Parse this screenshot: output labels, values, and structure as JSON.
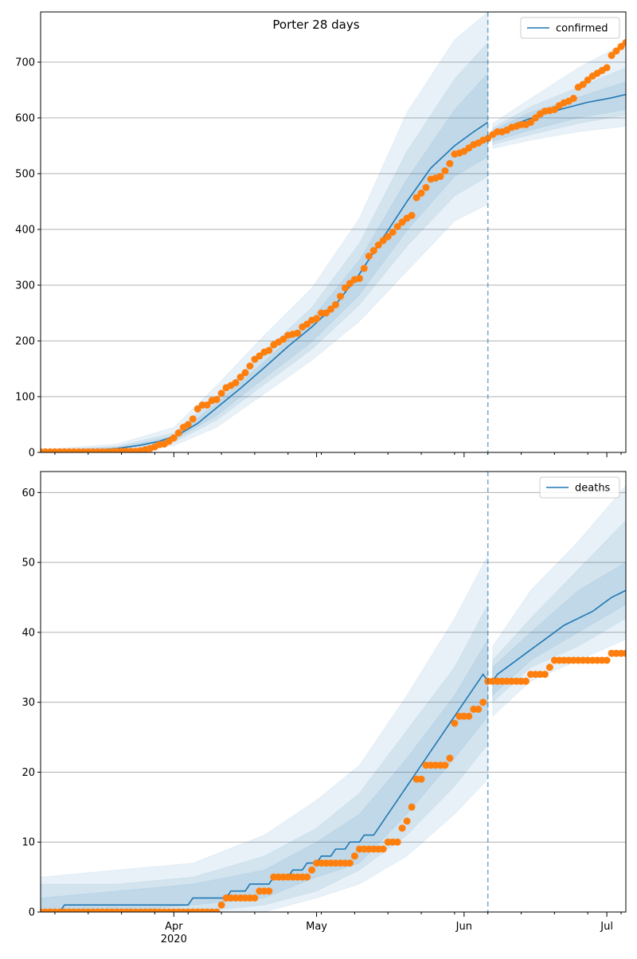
{
  "figure": {
    "title": "Porter 28 days"
  },
  "colors": {
    "model": "#1f77b4",
    "observed": "#ff7f0e",
    "grid": "#b0b0b0",
    "axes": "#000000"
  },
  "x_axis": {
    "start": "2020-03-04",
    "end": "2020-07-05",
    "tick_labels": [
      "Apr",
      "May",
      "Jun",
      "Jul"
    ],
    "tick_dates": [
      "2020-04-01",
      "2020-05-01",
      "2020-06-01",
      "2020-07-01"
    ],
    "year_label": "2020",
    "minor_ticks": "weekly"
  },
  "chart_data": [
    {
      "type": "line",
      "panel": "top",
      "title": "",
      "legend": {
        "label": "confirmed",
        "placement": "top-right"
      },
      "ylim": [
        0,
        790
      ],
      "yticks": [
        0,
        100,
        200,
        300,
        400,
        500,
        600,
        700
      ],
      "grid": "horizontal",
      "forecast_start": "2020-06-06",
      "model_line": {
        "name": "confirmed",
        "x": [
          "2020-03-04",
          "2020-03-10",
          "2020-03-16",
          "2020-03-20",
          "2020-03-25",
          "2020-03-29",
          "2020-04-02",
          "2020-04-06",
          "2020-04-10",
          "2020-04-15",
          "2020-04-20",
          "2020-04-25",
          "2020-04-30",
          "2020-05-05",
          "2020-05-10",
          "2020-05-15",
          "2020-05-20",
          "2020-05-25",
          "2020-05-30",
          "2020-06-03",
          "2020-06-06",
          "2020-06-07",
          "2020-06-12",
          "2020-06-17",
          "2020-06-22",
          "2020-06-27",
          "2020-07-02",
          "2020-07-05"
        ],
        "y": [
          1,
          2,
          4,
          7,
          13,
          20,
          32,
          52,
          80,
          115,
          152,
          190,
          225,
          265,
          320,
          385,
          450,
          510,
          550,
          575,
          592,
          570,
          590,
          605,
          617,
          628,
          636,
          642
        ]
      },
      "bands": {
        "x": [
          "2020-03-04",
          "2020-03-20",
          "2020-04-01",
          "2020-04-10",
          "2020-04-20",
          "2020-04-30",
          "2020-05-10",
          "2020-05-20",
          "2020-05-30",
          "2020-06-06",
          "2020-06-07",
          "2020-06-15",
          "2020-06-25",
          "2020-07-05"
        ],
        "outer_lo": [
          0,
          2,
          12,
          45,
          105,
          165,
          235,
          325,
          415,
          445,
          545,
          560,
          575,
          585
        ],
        "outer_hi": [
          5,
          15,
          45,
          120,
          210,
          295,
          420,
          610,
          740,
          790,
          590,
          635,
          690,
          735
        ],
        "mid_lo": [
          0,
          4,
          18,
          58,
          122,
          185,
          265,
          370,
          460,
          495,
          552,
          570,
          590,
          605
        ],
        "mid_hi": [
          3,
          11,
          35,
          100,
          180,
          260,
          375,
          540,
          670,
          735,
          582,
          620,
          655,
          690
        ],
        "inner_lo": [
          0,
          5,
          22,
          66,
          133,
          198,
          283,
          398,
          495,
          530,
          558,
          578,
          600,
          615
        ],
        "inner_hi": [
          2,
          9,
          29,
          88,
          163,
          240,
          345,
          490,
          615,
          680,
          578,
          610,
          637,
          665
        ]
      },
      "observed": {
        "name": "",
        "x": [
          "2020-03-04",
          "2020-03-05",
          "2020-03-06",
          "2020-03-07",
          "2020-03-08",
          "2020-03-09",
          "2020-03-10",
          "2020-03-11",
          "2020-03-12",
          "2020-03-13",
          "2020-03-14",
          "2020-03-15",
          "2020-03-16",
          "2020-03-17",
          "2020-03-18",
          "2020-03-19",
          "2020-03-20",
          "2020-03-21",
          "2020-03-22",
          "2020-03-23",
          "2020-03-24",
          "2020-03-25",
          "2020-03-26",
          "2020-03-27",
          "2020-03-28",
          "2020-03-29",
          "2020-03-30",
          "2020-03-31",
          "2020-04-01",
          "2020-04-02",
          "2020-04-03",
          "2020-04-04",
          "2020-04-05",
          "2020-04-06",
          "2020-04-07",
          "2020-04-08",
          "2020-04-09",
          "2020-04-10",
          "2020-04-11",
          "2020-04-12",
          "2020-04-13",
          "2020-04-14",
          "2020-04-15",
          "2020-04-16",
          "2020-04-17",
          "2020-04-18",
          "2020-04-19",
          "2020-04-20",
          "2020-04-21",
          "2020-04-22",
          "2020-04-23",
          "2020-04-24",
          "2020-04-25",
          "2020-04-26",
          "2020-04-27",
          "2020-04-28",
          "2020-04-29",
          "2020-04-30",
          "2020-05-01",
          "2020-05-02",
          "2020-05-03",
          "2020-05-04",
          "2020-05-05",
          "2020-05-06",
          "2020-05-07",
          "2020-05-08",
          "2020-05-09",
          "2020-05-10",
          "2020-05-11",
          "2020-05-12",
          "2020-05-13",
          "2020-05-14",
          "2020-05-15",
          "2020-05-16",
          "2020-05-17",
          "2020-05-18",
          "2020-05-19",
          "2020-05-20",
          "2020-05-21",
          "2020-05-22",
          "2020-05-23",
          "2020-05-24",
          "2020-05-25",
          "2020-05-26",
          "2020-05-27",
          "2020-05-28",
          "2020-05-29",
          "2020-05-30",
          "2020-05-31",
          "2020-06-01",
          "2020-06-02",
          "2020-06-03",
          "2020-06-04",
          "2020-06-05",
          "2020-06-06",
          "2020-06-07",
          "2020-06-08",
          "2020-06-09",
          "2020-06-10",
          "2020-06-11",
          "2020-06-12",
          "2020-06-13",
          "2020-06-14",
          "2020-06-15",
          "2020-06-16",
          "2020-06-17",
          "2020-06-18",
          "2020-06-19",
          "2020-06-20",
          "2020-06-21",
          "2020-06-22",
          "2020-06-23",
          "2020-06-24",
          "2020-06-25",
          "2020-06-26",
          "2020-06-27",
          "2020-06-28",
          "2020-06-29",
          "2020-06-30",
          "2020-07-01",
          "2020-07-02",
          "2020-07-03",
          "2020-07-04",
          "2020-07-05"
        ],
        "y": [
          1,
          1,
          1,
          1,
          1,
          1,
          1,
          1,
          1,
          1,
          1,
          1,
          1,
          1,
          1,
          1,
          2,
          2,
          2,
          2,
          2,
          3,
          5,
          7,
          10,
          14,
          15,
          20,
          26,
          35,
          45,
          50,
          60,
          78,
          85,
          85,
          93,
          95,
          106,
          116,
          120,
          125,
          135,
          143,
          155,
          167,
          173,
          180,
          183,
          193,
          198,
          203,
          210,
          212,
          214,
          225,
          230,
          237,
          240,
          250,
          250,
          257,
          265,
          280,
          295,
          303,
          310,
          312,
          330,
          352,
          362,
          372,
          380,
          387,
          395,
          405,
          413,
          420,
          425,
          457,
          465,
          475,
          490,
          492,
          495,
          505,
          518,
          535,
          537,
          540,
          546,
          552,
          555,
          560,
          563,
          570,
          575,
          575,
          578,
          583,
          585,
          588,
          588,
          592,
          600,
          607,
          612,
          613,
          615,
          622,
          627,
          630,
          635,
          655,
          660,
          668,
          675,
          680,
          685,
          690,
          712,
          720,
          728,
          735
        ]
      }
    },
    {
      "type": "line",
      "panel": "bottom",
      "title": "",
      "legend": {
        "label": "deaths",
        "placement": "top-right"
      },
      "ylim": [
        0,
        63
      ],
      "yticks": [
        0,
        10,
        20,
        30,
        40,
        50,
        60
      ],
      "grid": "horizontal",
      "forecast_start": "2020-06-06",
      "model_line": {
        "name": "deaths",
        "x": [
          "2020-03-04",
          "2020-03-08",
          "2020-03-09",
          "2020-04-04",
          "2020-04-05",
          "2020-04-12",
          "2020-04-13",
          "2020-04-16",
          "2020-04-17",
          "2020-04-21",
          "2020-04-22",
          "2020-04-25",
          "2020-04-26",
          "2020-04-28",
          "2020-04-29",
          "2020-05-01",
          "2020-05-02",
          "2020-05-04",
          "2020-05-05",
          "2020-05-07",
          "2020-05-08",
          "2020-05-10",
          "2020-05-11",
          "2020-05-13",
          "2020-05-14",
          "2020-05-15",
          "2020-05-16",
          "2020-05-17",
          "2020-05-18",
          "2020-05-19",
          "2020-05-20",
          "2020-05-21",
          "2020-05-22",
          "2020-05-23",
          "2020-05-24",
          "2020-05-25",
          "2020-05-26",
          "2020-05-27",
          "2020-05-28",
          "2020-05-29",
          "2020-05-30",
          "2020-05-31",
          "2020-06-01",
          "2020-06-02",
          "2020-06-03",
          "2020-06-04",
          "2020-06-05",
          "2020-06-06",
          "2020-06-07",
          "2020-06-08",
          "2020-06-10",
          "2020-06-12",
          "2020-06-14",
          "2020-06-16",
          "2020-06-18",
          "2020-06-20",
          "2020-06-22",
          "2020-06-25",
          "2020-06-28",
          "2020-07-02",
          "2020-07-05"
        ],
        "y": [
          0,
          0,
          1,
          1,
          2,
          2,
          3,
          3,
          4,
          4,
          5,
          5,
          6,
          6,
          7,
          7,
          8,
          8,
          9,
          9,
          10,
          10,
          11,
          11,
          12,
          13,
          14,
          15,
          16,
          17,
          18,
          19,
          20,
          21,
          22,
          23,
          24,
          25,
          26,
          27,
          28,
          29,
          30,
          31,
          32,
          33,
          34,
          33,
          33,
          34,
          35,
          36,
          37,
          38,
          39,
          40,
          41,
          42,
          43,
          45,
          46
        ]
      },
      "bands": {
        "x": [
          "2020-03-04",
          "2020-03-20",
          "2020-04-05",
          "2020-04-20",
          "2020-05-01",
          "2020-05-10",
          "2020-05-20",
          "2020-05-30",
          "2020-06-06",
          "2020-06-07",
          "2020-06-15",
          "2020-06-25",
          "2020-07-05"
        ],
        "outer_lo": [
          0,
          0,
          0,
          0,
          2,
          4,
          8,
          14,
          19,
          28,
          33,
          36,
          39
        ],
        "outer_hi": [
          5,
          6,
          7,
          11,
          16,
          21,
          31,
          42,
          51,
          38,
          46,
          53,
          61
        ],
        "mid_lo": [
          0,
          0,
          0,
          1,
          3,
          6,
          11,
          18,
          24,
          30,
          35,
          38,
          42
        ],
        "mid_hi": [
          4,
          4,
          5,
          8,
          12,
          17,
          26,
          35,
          44,
          36,
          42,
          49,
          56
        ],
        "inner_lo": [
          0,
          0,
          1,
          2,
          5,
          7,
          14,
          22,
          28,
          31,
          36,
          40,
          44
        ],
        "inner_hi": [
          2,
          3,
          4,
          6,
          10,
          14,
          22,
          31,
          39,
          35,
          40,
          46,
          50
        ]
      },
      "observed": {
        "name": "",
        "x": [
          "2020-03-04",
          "2020-03-05",
          "2020-03-06",
          "2020-03-07",
          "2020-03-08",
          "2020-03-09",
          "2020-03-10",
          "2020-03-11",
          "2020-03-12",
          "2020-03-13",
          "2020-03-14",
          "2020-03-15",
          "2020-03-16",
          "2020-03-17",
          "2020-03-18",
          "2020-03-19",
          "2020-03-20",
          "2020-03-21",
          "2020-03-22",
          "2020-03-23",
          "2020-03-24",
          "2020-03-25",
          "2020-03-26",
          "2020-03-27",
          "2020-03-28",
          "2020-03-29",
          "2020-03-30",
          "2020-03-31",
          "2020-04-01",
          "2020-04-02",
          "2020-04-03",
          "2020-04-04",
          "2020-04-05",
          "2020-04-06",
          "2020-04-07",
          "2020-04-08",
          "2020-04-09",
          "2020-04-10",
          "2020-04-11",
          "2020-04-12",
          "2020-04-13",
          "2020-04-14",
          "2020-04-15",
          "2020-04-16",
          "2020-04-17",
          "2020-04-18",
          "2020-04-19",
          "2020-04-20",
          "2020-04-21",
          "2020-04-22",
          "2020-04-23",
          "2020-04-24",
          "2020-04-25",
          "2020-04-26",
          "2020-04-27",
          "2020-04-28",
          "2020-04-29",
          "2020-04-30",
          "2020-05-01",
          "2020-05-02",
          "2020-05-03",
          "2020-05-04",
          "2020-05-05",
          "2020-05-06",
          "2020-05-07",
          "2020-05-08",
          "2020-05-09",
          "2020-05-10",
          "2020-05-11",
          "2020-05-12",
          "2020-05-13",
          "2020-05-14",
          "2020-05-15",
          "2020-05-16",
          "2020-05-17",
          "2020-05-18",
          "2020-05-19",
          "2020-05-20",
          "2020-05-21",
          "2020-05-22",
          "2020-05-23",
          "2020-05-24",
          "2020-05-25",
          "2020-05-26",
          "2020-05-27",
          "2020-05-28",
          "2020-05-29",
          "2020-05-30",
          "2020-05-31",
          "2020-06-01",
          "2020-06-02",
          "2020-06-03",
          "2020-06-04",
          "2020-06-05",
          "2020-06-06",
          "2020-06-07",
          "2020-06-08",
          "2020-06-09",
          "2020-06-10",
          "2020-06-11",
          "2020-06-12",
          "2020-06-13",
          "2020-06-14",
          "2020-06-15",
          "2020-06-16",
          "2020-06-17",
          "2020-06-18",
          "2020-06-19",
          "2020-06-20",
          "2020-06-21",
          "2020-06-22",
          "2020-06-23",
          "2020-06-24",
          "2020-06-25",
          "2020-06-26",
          "2020-06-27",
          "2020-06-28",
          "2020-06-29",
          "2020-06-30",
          "2020-07-01",
          "2020-07-02",
          "2020-07-03",
          "2020-07-04",
          "2020-07-05"
        ],
        "y": [
          0,
          0,
          0,
          0,
          0,
          0,
          0,
          0,
          0,
          0,
          0,
          0,
          0,
          0,
          0,
          0,
          0,
          0,
          0,
          0,
          0,
          0,
          0,
          0,
          0,
          0,
          0,
          0,
          0,
          0,
          0,
          0,
          0,
          0,
          0,
          0,
          0,
          0,
          1,
          2,
          2,
          2,
          2,
          2,
          2,
          2,
          3,
          3,
          3,
          5,
          5,
          5,
          5,
          5,
          5,
          5,
          5,
          6,
          7,
          7,
          7,
          7,
          7,
          7,
          7,
          7,
          8,
          9,
          9,
          9,
          9,
          9,
          9,
          10,
          10,
          10,
          12,
          13,
          15,
          19,
          19,
          21,
          21,
          21,
          21,
          21,
          22,
          27,
          28,
          28,
          28,
          29,
          29,
          30,
          33,
          33,
          33,
          33,
          33,
          33,
          33,
          33,
          33,
          34,
          34,
          34,
          34,
          35,
          36,
          36,
          36,
          36,
          36,
          36,
          36,
          36,
          36,
          36,
          36,
          36,
          37,
          37,
          37,
          37
        ]
      }
    }
  ]
}
